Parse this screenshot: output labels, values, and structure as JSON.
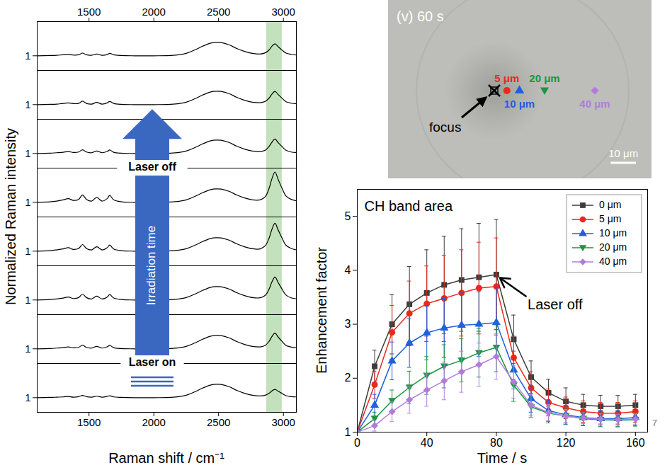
{
  "chart_data": [
    {
      "type": "line",
      "x_label": "Raman shift / cm⁻¹",
      "y_label": "Normalized Raman intensity",
      "x": [
        1100,
        1200,
        1250,
        1300,
        1340,
        1380,
        1420,
        1450,
        1480,
        1520,
        1560,
        1600,
        1640,
        1660,
        1690,
        1750,
        1850,
        2000,
        2150,
        2250,
        2320,
        2380,
        2440,
        2480,
        2520,
        2580,
        2640,
        2700,
        2760,
        2820,
        2860,
        2890,
        2910,
        2935,
        2960,
        2990,
        3020,
        3060,
        3100
      ],
      "xlim": [
        1100,
        3100
      ],
      "xticks": [
        1500,
        2000,
        2500,
        3000
      ],
      "ylim": [
        0.4,
        2.4
      ],
      "yticks": [
        1
      ],
      "highlight": {
        "x": [
          2870,
          2990
        ],
        "color": "#b9dcb0"
      },
      "annotations": {
        "arrow_label": "Irradiation time",
        "start": "Laser on",
        "end": "Laser off"
      },
      "series": [
        {
          "color": "#000000",
          "values": [
            1.0,
            1.01,
            1.02,
            1.04,
            1.05,
            1.03,
            1.04,
            1.11,
            1.04,
            1.02,
            1.07,
            1.02,
            1.05,
            1.1,
            1.04,
            1.01,
            1.0,
            1.0,
            1.02,
            1.1,
            1.25,
            1.4,
            1.52,
            1.55,
            1.54,
            1.45,
            1.3,
            1.18,
            1.1,
            1.07,
            1.12,
            1.24,
            1.38,
            1.49,
            1.37,
            1.23,
            1.11,
            1.06,
            1.03
          ]
        },
        {
          "color": "#000000",
          "values": [
            1.0,
            1.01,
            1.02,
            1.05,
            1.07,
            1.04,
            1.05,
            1.14,
            1.05,
            1.02,
            1.09,
            1.02,
            1.07,
            1.13,
            1.05,
            1.01,
            1.0,
            1.0,
            1.02,
            1.1,
            1.25,
            1.4,
            1.52,
            1.55,
            1.54,
            1.45,
            1.3,
            1.18,
            1.1,
            1.08,
            1.13,
            1.27,
            1.42,
            1.54,
            1.41,
            1.26,
            1.12,
            1.06,
            1.04
          ]
        },
        {
          "color": "#000000",
          "values": [
            1.0,
            1.01,
            1.03,
            1.05,
            1.08,
            1.04,
            1.06,
            1.15,
            1.06,
            1.03,
            1.1,
            1.03,
            1.08,
            1.14,
            1.05,
            1.01,
            1.0,
            1.0,
            1.02,
            1.1,
            1.25,
            1.4,
            1.52,
            1.55,
            1.54,
            1.45,
            1.3,
            1.18,
            1.1,
            1.08,
            1.13,
            1.29,
            1.45,
            1.59,
            1.44,
            1.28,
            1.13,
            1.06,
            1.04
          ]
        },
        {
          "color": "#000000",
          "values": [
            1.0,
            1.02,
            1.05,
            1.1,
            1.15,
            1.08,
            1.12,
            1.3,
            1.12,
            1.05,
            1.2,
            1.05,
            1.15,
            1.28,
            1.1,
            1.02,
            1.0,
            1.0,
            1.02,
            1.1,
            1.25,
            1.4,
            1.52,
            1.55,
            1.54,
            1.45,
            1.3,
            1.18,
            1.1,
            1.1,
            1.23,
            1.58,
            1.94,
            2.24,
            1.93,
            1.57,
            1.26,
            1.12,
            1.06
          ]
        },
        {
          "color": "#000000",
          "values": [
            1.0,
            1.02,
            1.05,
            1.09,
            1.14,
            1.07,
            1.11,
            1.27,
            1.11,
            1.05,
            1.18,
            1.05,
            1.14,
            1.25,
            1.09,
            1.02,
            1.0,
            1.0,
            1.02,
            1.1,
            1.25,
            1.4,
            1.52,
            1.55,
            1.54,
            1.45,
            1.3,
            1.18,
            1.1,
            1.09,
            1.22,
            1.54,
            1.87,
            2.14,
            1.86,
            1.53,
            1.24,
            1.11,
            1.05
          ]
        },
        {
          "color": "#000000",
          "values": [
            1.0,
            1.02,
            1.04,
            1.08,
            1.12,
            1.06,
            1.1,
            1.24,
            1.1,
            1.04,
            1.16,
            1.04,
            1.12,
            1.22,
            1.08,
            1.02,
            1.0,
            1.0,
            1.02,
            1.1,
            1.25,
            1.4,
            1.52,
            1.55,
            1.54,
            1.45,
            1.3,
            1.18,
            1.1,
            1.09,
            1.19,
            1.45,
            1.72,
            1.94,
            1.71,
            1.44,
            1.2,
            1.09,
            1.05
          ]
        },
        {
          "color": "#000000",
          "values": [
            1.0,
            1.01,
            1.03,
            1.05,
            1.08,
            1.04,
            1.06,
            1.15,
            1.06,
            1.03,
            1.1,
            1.03,
            1.08,
            1.14,
            1.05,
            1.01,
            1.0,
            1.0,
            1.02,
            1.1,
            1.25,
            1.4,
            1.52,
            1.55,
            1.54,
            1.45,
            1.3,
            1.18,
            1.1,
            1.08,
            1.14,
            1.31,
            1.49,
            1.64,
            1.48,
            1.3,
            1.14,
            1.07,
            1.04
          ]
        },
        {
          "color": "#000000",
          "values": [
            1.0,
            1.01,
            1.02,
            1.03,
            1.05,
            1.02,
            1.04,
            1.09,
            1.04,
            1.02,
            1.06,
            1.02,
            1.05,
            1.08,
            1.03,
            1.01,
            1.0,
            1.0,
            1.02,
            1.1,
            1.25,
            1.4,
            1.52,
            1.55,
            1.54,
            1.45,
            1.3,
            1.18,
            1.1,
            1.07,
            1.1,
            1.18,
            1.27,
            1.34,
            1.26,
            1.17,
            1.08,
            1.04,
            1.03
          ]
        }
      ]
    },
    {
      "type": "line",
      "title": "CH band area",
      "x_label": "Time / s",
      "y_label": "Enhancement factor",
      "x": [
        0,
        10,
        20,
        30,
        40,
        50,
        60,
        70,
        80,
        90,
        100,
        110,
        120,
        130,
        140,
        150,
        160
      ],
      "xlim": [
        0,
        167
      ],
      "xticks": [
        0,
        40,
        80,
        120,
        160
      ],
      "ylim": [
        1,
        5.5
      ],
      "yticks": [
        1,
        2,
        3,
        4,
        5
      ],
      "grid": false,
      "legend": "top-right",
      "annotations": [
        {
          "text": "Laser off",
          "x": 80
        }
      ],
      "series": [
        {
          "name": "0 μm",
          "color": "#3c3c3c",
          "marker": "square",
          "values": [
            1,
            2.22,
            3.0,
            3.37,
            3.58,
            3.73,
            3.82,
            3.87,
            3.92,
            2.72,
            2.02,
            1.73,
            1.57,
            1.5,
            1.48,
            1.48,
            1.5
          ],
          "errors": [
            0,
            0.3,
            0.55,
            0.7,
            0.8,
            0.9,
            0.95,
            1.0,
            1.02,
            0.45,
            0.3,
            0.25,
            0.25,
            0.2,
            0.2,
            0.2,
            0.2
          ]
        },
        {
          "name": "5 μm",
          "color": "#e8291c",
          "marker": "circle",
          "values": [
            1,
            1.88,
            2.85,
            3.2,
            3.38,
            3.48,
            3.58,
            3.67,
            3.7,
            2.38,
            1.82,
            1.55,
            1.45,
            1.38,
            1.35,
            1.35,
            1.38
          ],
          "errors": [
            0,
            0.25,
            0.5,
            0.6,
            0.7,
            0.8,
            0.8,
            0.85,
            0.9,
            0.4,
            0.3,
            0.25,
            0.2,
            0.2,
            0.2,
            0.2,
            0.2
          ]
        },
        {
          "name": "10 μm",
          "color": "#1f5fe0",
          "marker": "triangle",
          "values": [
            1,
            1.5,
            2.32,
            2.65,
            2.84,
            2.93,
            2.98,
            3.0,
            3.03,
            2.15,
            1.62,
            1.4,
            1.32,
            1.27,
            1.25,
            1.25,
            1.27
          ],
          "errors": [
            0,
            0.2,
            0.35,
            0.45,
            0.5,
            0.55,
            0.6,
            0.6,
            0.65,
            0.35,
            0.25,
            0.2,
            0.18,
            0.15,
            0.15,
            0.15,
            0.15
          ]
        },
        {
          "name": "20 μm",
          "color": "#1a9641",
          "marker": "triangle-down",
          "values": [
            1,
            1.25,
            1.58,
            1.83,
            2.05,
            2.22,
            2.33,
            2.47,
            2.57,
            1.87,
            1.47,
            1.35,
            1.3,
            1.25,
            1.23,
            1.22,
            1.23
          ],
          "errors": [
            0,
            0.12,
            0.2,
            0.3,
            0.35,
            0.4,
            0.4,
            0.45,
            0.45,
            0.3,
            0.2,
            0.18,
            0.15,
            0.12,
            0.12,
            0.12,
            0.12
          ]
        },
        {
          "name": "40 μm",
          "color": "#b07cdc",
          "marker": "diamond",
          "values": [
            1,
            1.12,
            1.38,
            1.6,
            1.78,
            1.95,
            2.12,
            2.25,
            2.4,
            1.93,
            1.5,
            1.36,
            1.3,
            1.26,
            1.24,
            1.23,
            1.24
          ],
          "errors": [
            0,
            0.1,
            0.18,
            0.25,
            0.3,
            0.35,
            0.38,
            0.4,
            0.42,
            0.3,
            0.2,
            0.15,
            0.12,
            0.1,
            0.1,
            0.1,
            0.1
          ]
        }
      ]
    }
  ],
  "image": {
    "label": "(v) 60 s",
    "focus_label": "focus",
    "markers": [
      {
        "label": "5 μm",
        "distance": 5,
        "color": "#e8291c",
        "marker": "circle"
      },
      {
        "label": "10 μm",
        "distance": 10,
        "color": "#1f5fe0",
        "marker": "triangle"
      },
      {
        "label": "20 μm",
        "distance": 20,
        "color": "#1a9641",
        "marker": "triangle-down"
      },
      {
        "label": "40 μm",
        "distance": 40,
        "color": "#b07cdc",
        "marker": "diamond"
      }
    ],
    "scale_bar": {
      "label": "10 μm",
      "length": 10
    }
  },
  "page_number": "7"
}
